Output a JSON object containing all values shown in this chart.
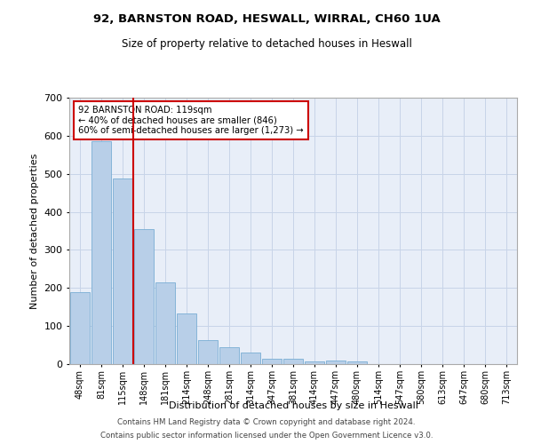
{
  "title1": "92, BARNSTON ROAD, HESWALL, WIRRAL, CH60 1UA",
  "title2": "Size of property relative to detached houses in Heswall",
  "xlabel": "Distribution of detached houses by size in Heswall",
  "ylabel": "Number of detached properties",
  "categories": [
    "48sqm",
    "81sqm",
    "115sqm",
    "148sqm",
    "181sqm",
    "214sqm",
    "248sqm",
    "281sqm",
    "314sqm",
    "347sqm",
    "381sqm",
    "414sqm",
    "447sqm",
    "480sqm",
    "514sqm",
    "547sqm",
    "580sqm",
    "613sqm",
    "647sqm",
    "680sqm",
    "713sqm"
  ],
  "values": [
    190,
    585,
    487,
    355,
    215,
    132,
    63,
    44,
    30,
    15,
    15,
    8,
    10,
    8,
    0,
    0,
    0,
    0,
    0,
    0,
    0
  ],
  "bar_color": "#b8cfe8",
  "bar_edge_color": "#7aadd4",
  "vline_x_index": 2,
  "vline_color": "#cc0000",
  "annotation_line1": "92 BARNSTON ROAD: 119sqm",
  "annotation_line2": "← 40% of detached houses are smaller (846)",
  "annotation_line3": "60% of semi-detached houses are larger (1,273) →",
  "annotation_box_facecolor": "#ffffff",
  "annotation_box_edgecolor": "#cc0000",
  "grid_color": "#c8d4e8",
  "background_color": "#e8eef8",
  "ylim": [
    0,
    700
  ],
  "yticks": [
    0,
    100,
    200,
    300,
    400,
    500,
    600,
    700
  ],
  "footer1": "Contains HM Land Registry data © Crown copyright and database right 2024.",
  "footer2": "Contains public sector information licensed under the Open Government Licence v3.0."
}
